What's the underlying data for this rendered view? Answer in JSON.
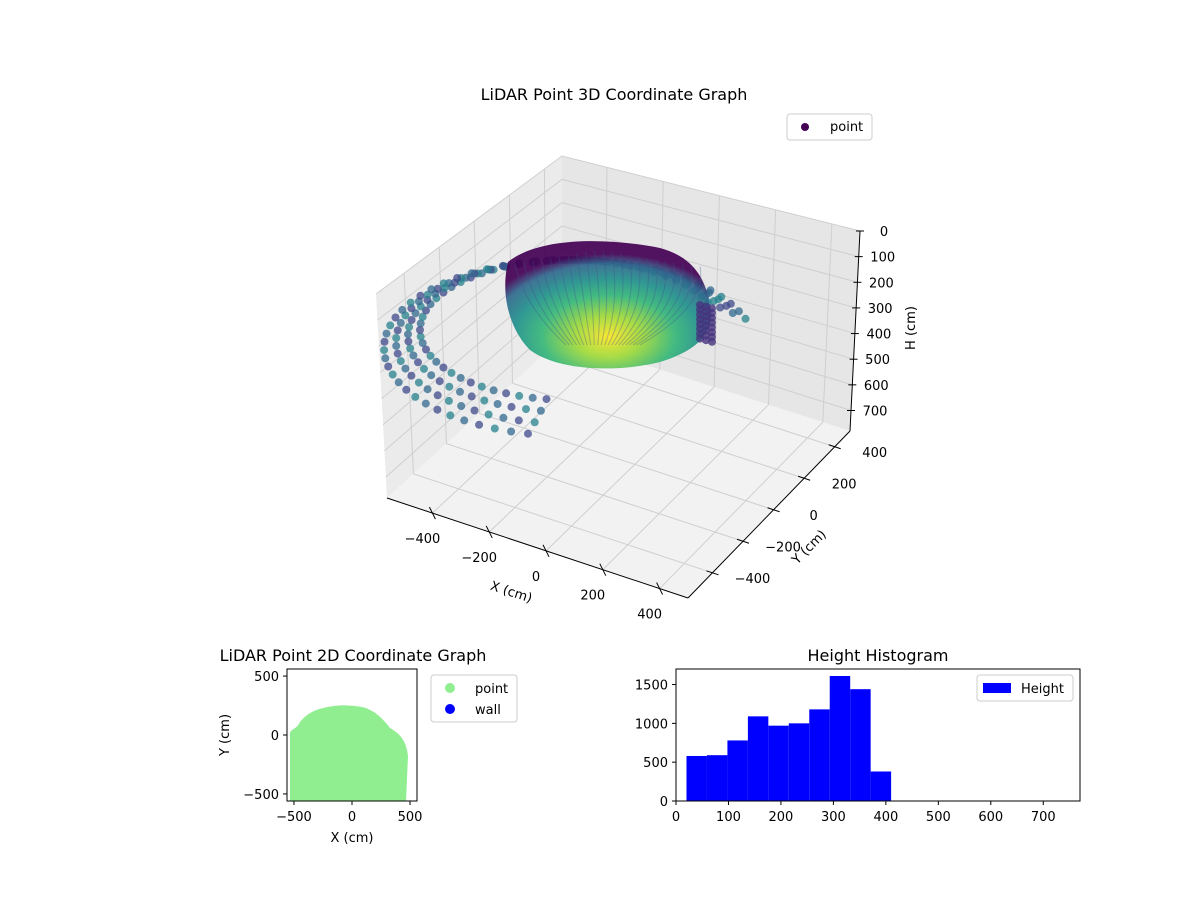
{
  "chart_data": [
    {
      "type": "scatter3d",
      "title": "LiDAR Point 3D Coordinate Graph",
      "xlabel": "X (cm)",
      "ylabel": "Y (cm)",
      "zlabel": "H (cm)",
      "x_ticks": [
        -400,
        -200,
        0,
        200,
        400
      ],
      "y_ticks": [
        -400,
        -200,
        0,
        200,
        400
      ],
      "z_ticks": [
        0,
        100,
        200,
        300,
        400,
        500,
        600,
        700
      ],
      "xlim": [
        -560,
        500
      ],
      "ylim": [
        -560,
        500
      ],
      "zlim": [
        0,
        780
      ],
      "z_inverted": true,
      "colormap": "viridis",
      "series": [
        {
          "name": "point",
          "color": "#440154"
        }
      ],
      "legend": "top-right",
      "grid": true
    },
    {
      "type": "scatter",
      "title": "LiDAR Point 2D Coordinate Graph",
      "xlabel": "X (cm)",
      "ylabel": "Y (cm)",
      "xlim": [
        -560,
        560
      ],
      "ylim": [
        -560,
        560
      ],
      "x_ticks": [
        -500,
        0,
        500
      ],
      "y_ticks": [
        -500,
        0,
        500
      ],
      "series": [
        {
          "name": "point",
          "color": "#90ee90"
        },
        {
          "name": "wall",
          "color": "#0000ff"
        }
      ],
      "legend": "outside-right",
      "grid": false
    },
    {
      "type": "bar",
      "title": "Height Histogram",
      "xlabel": "",
      "ylabel": "",
      "xlim": [
        0,
        770
      ],
      "ylim": [
        0,
        1700
      ],
      "x_ticks": [
        0,
        100,
        200,
        300,
        400,
        500,
        600,
        700
      ],
      "y_ticks": [
        0,
        500,
        1000,
        1500
      ],
      "bin_edges": [
        20,
        59,
        98,
        137,
        176,
        215,
        254,
        293,
        332,
        371,
        410
      ],
      "values": [
        580,
        590,
        780,
        1090,
        970,
        1000,
        1180,
        1610,
        1440,
        380
      ],
      "series": [
        {
          "name": "Height",
          "color": "#0000ff"
        }
      ],
      "legend": "top-right",
      "grid": false
    }
  ]
}
